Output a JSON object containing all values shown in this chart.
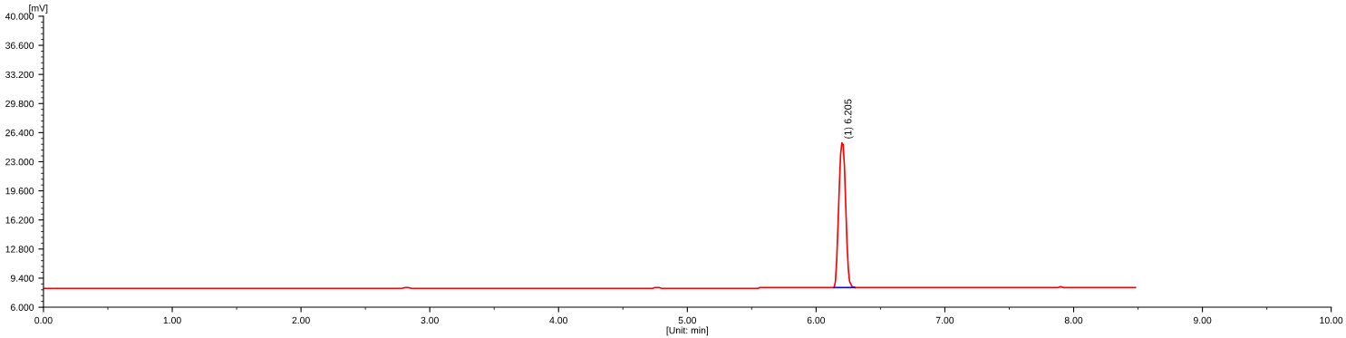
{
  "chart_data": {
    "type": "line",
    "xlabel": "[Unit: min]",
    "ylabel": "[mV]",
    "xlim": [
      0,
      10
    ],
    "ylim": [
      6,
      40
    ],
    "xticks": [
      {
        "value": 0,
        "label": "0.00"
      },
      {
        "value": 1,
        "label": "1.00"
      },
      {
        "value": 2,
        "label": "2.00"
      },
      {
        "value": 3,
        "label": "3.00"
      },
      {
        "value": 4,
        "label": "4.00"
      },
      {
        "value": 5,
        "label": "5.00"
      },
      {
        "value": 6,
        "label": "6.00"
      },
      {
        "value": 7,
        "label": "7.00"
      },
      {
        "value": 8,
        "label": "8.00"
      },
      {
        "value": 9,
        "label": "9.00"
      },
      {
        "value": 10,
        "label": "10.00"
      }
    ],
    "yticks": [
      {
        "value": 6,
        "label": "6.000"
      },
      {
        "value": 9.4,
        "label": "9.400"
      },
      {
        "value": 12.8,
        "label": "12.800"
      },
      {
        "value": 16.2,
        "label": "16.200"
      },
      {
        "value": 19.6,
        "label": "19.600"
      },
      {
        "value": 23,
        "label": "23.000"
      },
      {
        "value": 26.4,
        "label": "26.400"
      },
      {
        "value": 29.8,
        "label": "29.800"
      },
      {
        "value": 33.2,
        "label": "33.200"
      },
      {
        "value": 36.6,
        "label": "36.600"
      },
      {
        "value": 40,
        "label": "40.000"
      }
    ],
    "marker": "none",
    "line_style": "solid",
    "series": [
      {
        "color": "#ff0000",
        "x": [
          0,
          2.78,
          2.81,
          2.83,
          2.86,
          4.73,
          4.75,
          4.78,
          4.8,
          5.55,
          5.56,
          6.14,
          6.15,
          6.16,
          6.17,
          6.18,
          6.19,
          6.2,
          6.21,
          6.22,
          6.23,
          6.24,
          6.25,
          6.26,
          6.28,
          6.3,
          7.88,
          7.9,
          7.92,
          8.48
        ],
        "values": [
          8.2,
          8.2,
          8.3,
          8.3,
          8.2,
          8.2,
          8.3,
          8.3,
          8.2,
          8.2,
          8.3,
          8.3,
          9.0,
          11.5,
          15.5,
          20.0,
          23.8,
          25.2,
          25.0,
          22.5,
          18.0,
          13.5,
          10.5,
          9.0,
          8.4,
          8.3,
          8.3,
          8.4,
          8.3,
          8.3
        ]
      },
      {
        "color": "#0000ff",
        "x": [
          6.14,
          6.3
        ],
        "values": [
          8.3,
          8.3
        ]
      }
    ],
    "annotations": [
      {
        "text": "(1) 6.205",
        "x": 6.205,
        "y": 25.2
      }
    ]
  }
}
